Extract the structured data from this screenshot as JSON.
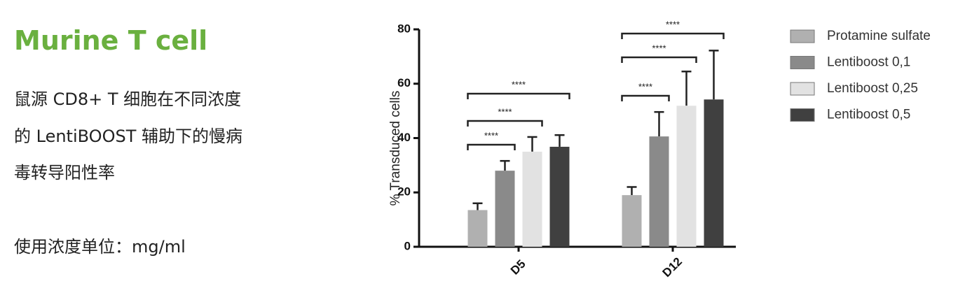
{
  "header": {
    "title": "Murine T cell"
  },
  "description": [
    "鼠源 CD8+ T 细胞在不同浓度",
    "的 LentiBOOST 辅助下的慢病",
    "毒转导阳性率"
  ],
  "note": "使用浓度单位：mg/ml",
  "chart_data": {
    "type": "bar",
    "y_label": "% Transduced cells",
    "categories": [
      "D5",
      "D12"
    ],
    "series": [
      {
        "name": "Protamine sulfate",
        "color": "#b0b0b0",
        "values": [
          13.5,
          19
        ],
        "errors": [
          2.5,
          3
        ]
      },
      {
        "name": "Lentiboost 0,1",
        "color": "#8a8a8a",
        "values": [
          28,
          40.6
        ],
        "errors": [
          3.6,
          9
        ]
      },
      {
        "name": "Lentiboost 0,25",
        "color": "#e2e2e2",
        "values": [
          35,
          51.9
        ],
        "errors": [
          5.4,
          12.6
        ]
      },
      {
        "name": "Lentiboost 0,5",
        "color": "#404040",
        "values": [
          36.8,
          54.2
        ],
        "errors": [
          4.3,
          18
        ]
      }
    ],
    "ylim": [
      0,
      80
    ],
    "yticks": [
      0,
      20,
      40,
      60,
      80
    ],
    "annotations": [
      "****",
      "****",
      "****",
      "****",
      "****",
      "****"
    ]
  }
}
